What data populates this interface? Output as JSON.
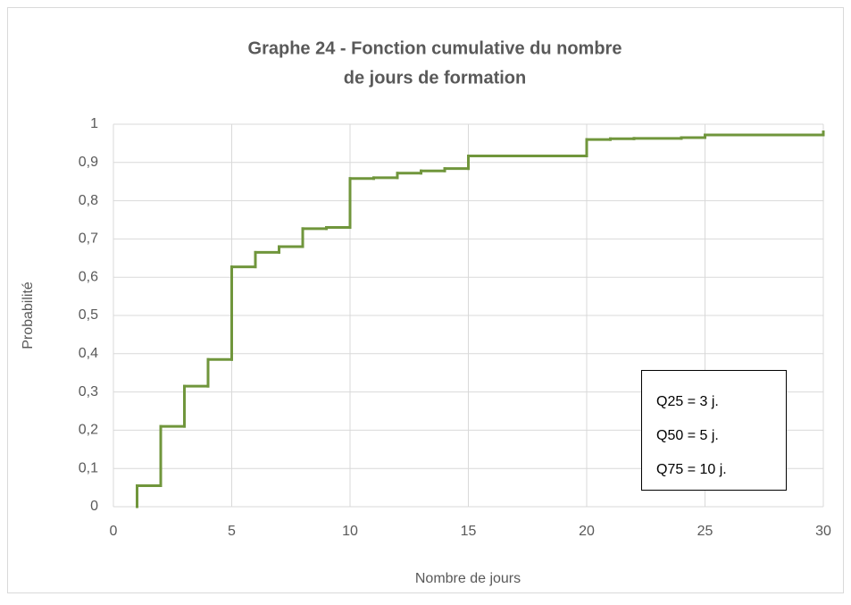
{
  "chart_data": {
    "type": "step",
    "title": "Graphe 24  -  Fonction cumulative du nombre",
    "title_line2": "de jours de formation",
    "x_label": "Nombre de jours",
    "y_label": "Probabilité",
    "annotations": [
      "Q25 = 3 j.",
      "Q50 = 5 j.",
      "Q75 = 10 j."
    ],
    "color": "#70963c",
    "grid": true,
    "x": [
      1,
      1,
      2,
      3,
      4,
      5,
      6,
      7,
      8,
      9,
      10,
      11,
      12,
      13,
      14,
      15,
      20,
      21,
      22,
      24,
      25,
      30,
      30
    ],
    "values": [
      0,
      0.055,
      0.21,
      0.315,
      0.385,
      0.627,
      0.665,
      0.68,
      0.727,
      0.73,
      0.858,
      0.86,
      0.872,
      0.878,
      0.884,
      0.917,
      0.96,
      0.962,
      0.963,
      0.965,
      0.972,
      0.975,
      0.98
    ],
    "xlim": [
      0,
      30
    ],
    "xticks": [
      0,
      5,
      10,
      15,
      20,
      25,
      30
    ],
    "ylim": [
      0,
      1
    ],
    "yticks": [
      0,
      {
        "value": 0.1,
        "label": "0,1"
      },
      {
        "value": 0.2,
        "label": "0,2"
      },
      {
        "value": 0.3,
        "label": "0,3"
      },
      {
        "value": 0.4,
        "label": "0,4"
      },
      {
        "value": 0.5,
        "label": "0,5"
      },
      {
        "value": 0.6,
        "label": "0,6"
      },
      {
        "value": 0.7,
        "label": "0,7"
      },
      {
        "value": 0.8,
        "label": "0,8"
      },
      {
        "value": 0.9,
        "label": "0,9"
      },
      1
    ]
  }
}
